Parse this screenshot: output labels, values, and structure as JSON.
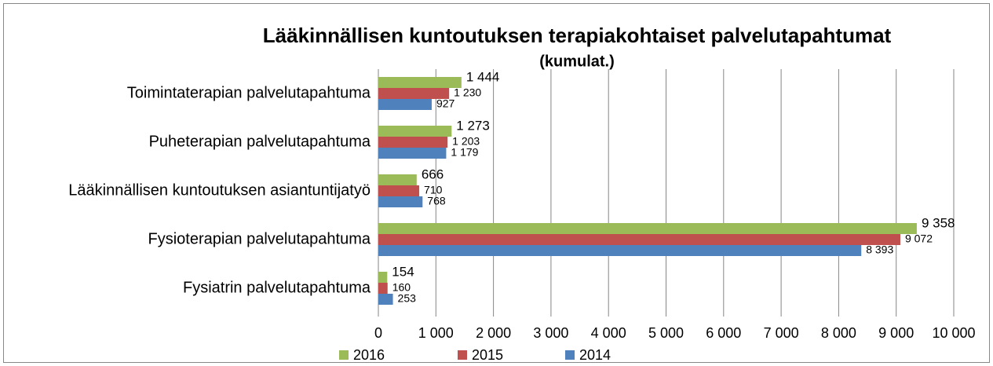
{
  "chart_data": {
    "type": "bar",
    "orientation": "horizontal",
    "title": "Lääkinnällisen kuntoutuksen terapiakohtaiset palvelutapahtumat",
    "subtitle": "(kumulat.)",
    "categories": [
      "Toimintaterapian palvelutapahtuma",
      "Puheterapian palvelutapahtuma",
      "Lääkinnällisen kuntoutuksen asiantuntijatyö",
      "Fysioterapian palvelutapahtuma",
      "Fysiatrin palvelutapahtuma"
    ],
    "series": [
      {
        "name": "2016",
        "color": "#9bbb59",
        "values": [
          1444,
          1273,
          666,
          9358,
          154
        ],
        "value_labels": [
          "1 444",
          "1 273",
          "666",
          "9 358",
          "154"
        ]
      },
      {
        "name": "2015",
        "color": "#c0504d",
        "values": [
          1230,
          1203,
          710,
          9072,
          160
        ],
        "value_labels": [
          "1 230",
          "1 203",
          "710",
          "9 072",
          "160"
        ]
      },
      {
        "name": "2014",
        "color": "#4f81bd",
        "values": [
          927,
          1179,
          768,
          8393,
          253
        ],
        "value_labels": [
          "927",
          "1 179",
          "768",
          "8 393",
          "253"
        ]
      }
    ],
    "xlim": [
      0,
      10000
    ],
    "xticks": [
      0,
      {
        "value": 1000,
        "label": "1 000"
      },
      {
        "value": 2000,
        "label": "2 000"
      },
      {
        "value": 3000,
        "label": "3 000"
      },
      {
        "value": 4000,
        "label": "4 000"
      },
      {
        "value": 5000,
        "label": "5 000"
      },
      {
        "value": 6000,
        "label": "6 000"
      },
      {
        "value": 7000,
        "label": "7 000"
      },
      {
        "value": 8000,
        "label": "8 000"
      },
      {
        "value": 9000,
        "label": "9 000"
      },
      {
        "value": 10000,
        "label": "10 000"
      }
    ],
    "grid": true,
    "legend": "bottom"
  }
}
